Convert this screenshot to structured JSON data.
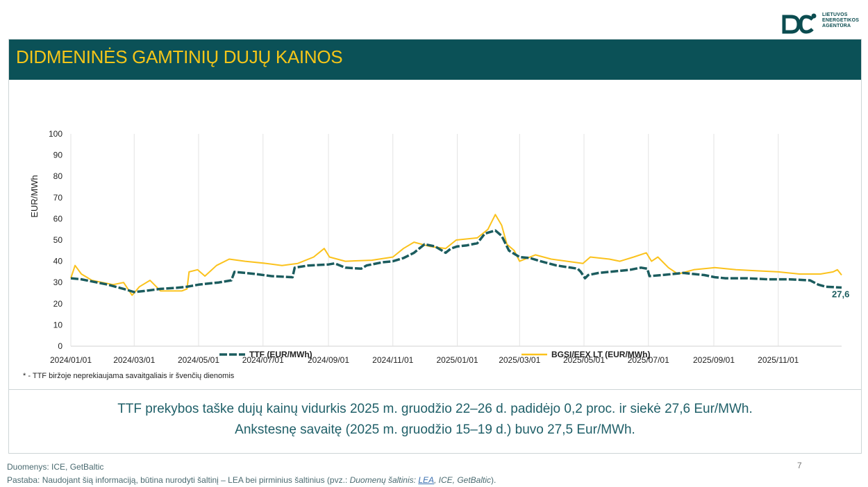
{
  "header": {
    "title": "DIDMENINĖS GAMTINIŲ DUJŲ KAINOS",
    "logo_lines": [
      "LIETUVOS",
      "ENERGETIKOS",
      "AGENTŪRA"
    ]
  },
  "colors": {
    "teal": "#0b5157",
    "ttf": "#1b5c5e",
    "bgsi": "#fbc21c",
    "accent": "#f5c518"
  },
  "chart_data": {
    "type": "line",
    "ylabel": "EUR/MWh",
    "xlabel": "",
    "ylim": [
      0,
      100
    ],
    "yticks": [
      0,
      10,
      20,
      30,
      40,
      50,
      60,
      70,
      80,
      90,
      100
    ],
    "xlim": [
      "2024-01-01",
      "2025-12-31"
    ],
    "xticks": [
      "2024/01/01",
      "2024/03/01",
      "2024/05/01",
      "2024/07/01",
      "2024/09/01",
      "2024/11/01",
      "2025/01/01",
      "2025/03/01",
      "2025/05/01",
      "2025/07/01",
      "2025/09/01",
      "2025/11/01"
    ],
    "xtick_days": [
      0,
      60,
      121,
      182,
      244,
      305,
      366,
      425,
      486,
      547,
      609,
      670
    ],
    "grid": "vertical",
    "end_label": "27,6",
    "series": [
      {
        "name": "TTF (EUR/MWh)",
        "style": "dashed",
        "points": [
          [
            0,
            32
          ],
          [
            10,
            31.5
          ],
          [
            20,
            30.5
          ],
          [
            35,
            29
          ],
          [
            50,
            27
          ],
          [
            60,
            25.5
          ],
          [
            70,
            26
          ],
          [
            85,
            27
          ],
          [
            100,
            27.5
          ],
          [
            110,
            28
          ],
          [
            121,
            29
          ],
          [
            130,
            29.5
          ],
          [
            140,
            30
          ],
          [
            152,
            31
          ],
          [
            155,
            35
          ],
          [
            165,
            34.5
          ],
          [
            175,
            34
          ],
          [
            190,
            33
          ],
          [
            210,
            32.5
          ],
          [
            212,
            37
          ],
          [
            225,
            38
          ],
          [
            244,
            38.5
          ],
          [
            250,
            39
          ],
          [
            260,
            37
          ],
          [
            275,
            36.5
          ],
          [
            280,
            38
          ],
          [
            295,
            39.5
          ],
          [
            305,
            40
          ],
          [
            315,
            41.5
          ],
          [
            325,
            44
          ],
          [
            335,
            48
          ],
          [
            345,
            47
          ],
          [
            355,
            44
          ],
          [
            360,
            46
          ],
          [
            366,
            47
          ],
          [
            375,
            47.5
          ],
          [
            385,
            48.5
          ],
          [
            392,
            53
          ],
          [
            402,
            54.5
          ],
          [
            408,
            52
          ],
          [
            415,
            45
          ],
          [
            425,
            42
          ],
          [
            435,
            41.5
          ],
          [
            445,
            40
          ],
          [
            460,
            38
          ],
          [
            480,
            36.5
          ],
          [
            483,
            35
          ],
          [
            487,
            32
          ],
          [
            490,
            33.5
          ],
          [
            500,
            34.5
          ],
          [
            510,
            35
          ],
          [
            520,
            35.5
          ],
          [
            530,
            36
          ],
          [
            540,
            37
          ],
          [
            546,
            36.5
          ],
          [
            548,
            33
          ],
          [
            560,
            33.5
          ],
          [
            570,
            34
          ],
          [
            580,
            34.5
          ],
          [
            590,
            34
          ],
          [
            600,
            33.5
          ],
          [
            610,
            32.5
          ],
          [
            620,
            32
          ],
          [
            640,
            32
          ],
          [
            660,
            31.5
          ],
          [
            680,
            31.5
          ],
          [
            700,
            31
          ],
          [
            708,
            29
          ],
          [
            715,
            28
          ],
          [
            730,
            27.6
          ]
        ]
      },
      {
        "name": "BGSI/EEX LT (EUR/MWh)",
        "style": "solid",
        "points": [
          [
            0,
            32
          ],
          [
            4,
            38
          ],
          [
            10,
            34
          ],
          [
            20,
            31
          ],
          [
            40,
            29
          ],
          [
            50,
            30
          ],
          [
            58,
            24
          ],
          [
            65,
            28
          ],
          [
            75,
            31
          ],
          [
            85,
            26
          ],
          [
            105,
            26
          ],
          [
            110,
            27
          ],
          [
            112,
            35
          ],
          [
            120,
            36
          ],
          [
            127,
            33
          ],
          [
            138,
            38
          ],
          [
            150,
            41
          ],
          [
            165,
            40
          ],
          [
            185,
            39
          ],
          [
            200,
            38
          ],
          [
            215,
            39
          ],
          [
            230,
            42
          ],
          [
            240,
            46
          ],
          [
            245,
            42
          ],
          [
            260,
            40
          ],
          [
            285,
            40.5
          ],
          [
            305,
            42
          ],
          [
            315,
            46
          ],
          [
            325,
            49
          ],
          [
            340,
            47
          ],
          [
            355,
            46
          ],
          [
            365,
            50
          ],
          [
            385,
            51
          ],
          [
            395,
            55
          ],
          [
            402,
            62
          ],
          [
            408,
            57
          ],
          [
            413,
            48
          ],
          [
            420,
            45
          ],
          [
            425,
            40
          ],
          [
            440,
            43
          ],
          [
            455,
            41
          ],
          [
            470,
            40
          ],
          [
            485,
            39
          ],
          [
            492,
            42
          ],
          [
            510,
            41
          ],
          [
            520,
            40
          ],
          [
            533,
            42
          ],
          [
            545,
            44
          ],
          [
            550,
            40
          ],
          [
            556,
            42
          ],
          [
            566,
            37
          ],
          [
            575,
            34
          ],
          [
            590,
            36
          ],
          [
            610,
            37
          ],
          [
            630,
            36
          ],
          [
            650,
            35.5
          ],
          [
            670,
            35
          ],
          [
            690,
            34
          ],
          [
            710,
            34
          ],
          [
            722,
            35
          ],
          [
            726,
            36
          ],
          [
            730,
            33.5
          ]
        ]
      }
    ]
  },
  "legend": {
    "ttf_label": "TTF (EUR/MWh)",
    "bgsi_label": "BGSI/EEX LT (EUR/MWh)"
  },
  "footnote": "* - TTF biržoje neprekiaujama savaitgaliais ir švenčių dienomis",
  "summary": {
    "line1": "TTF prekybos taške dujų kainų vidurkis 2025 m. gruodžio 22–26 d. padidėjo 0,2 proc. ir siekė 27,6 Eur/MWh.",
    "line2": "Ankstesnę savaitę (2025 m. gruodžio 15–19 d.) buvo 27,5 Eur/MWh."
  },
  "source": {
    "data_sources": "Duomenys: ICE, GetBaltic",
    "note_prefix": "Pastaba: Naudojant šią informaciją, būtina nurodyti šaltinį – LEA bei pirminius šaltinius (pvz.: ",
    "note_italic": "Duomenų šaltinis: ",
    "note_link": "LEA",
    "note_italic2": ", ICE, GetBaltic",
    "note_suffix": ")."
  },
  "page_number": "7"
}
